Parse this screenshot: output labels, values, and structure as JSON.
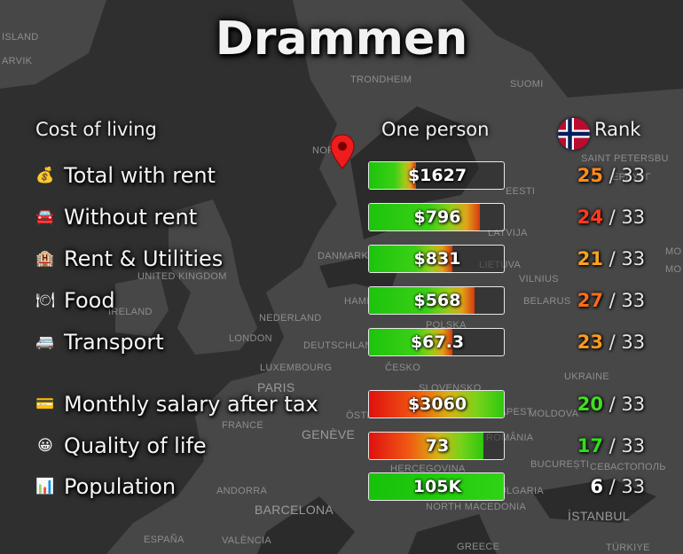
{
  "title": "Drammen",
  "headers": {
    "category": "Cost of living",
    "value": "One person",
    "rank": "Rank"
  },
  "map_labels": [
    {
      "text": "ISLAND",
      "big": false
    },
    {
      "text": "ARVIK",
      "big": false
    },
    {
      "text": "TRONDHEIM",
      "big": false
    },
    {
      "text": "SUOMI",
      "big": false
    },
    {
      "text": "NOR",
      "big": false
    },
    {
      "text": "SAINT PETERSBU",
      "big": false
    },
    {
      "text": "ЕРБУРГ",
      "big": false
    },
    {
      "text": "EESTI",
      "big": false
    },
    {
      "text": "LATVIJA",
      "big": false
    },
    {
      "text": "DANMARK",
      "big": false
    },
    {
      "text": "LIETUVA",
      "big": false
    },
    {
      "text": "UNITED KINGDOM",
      "big": false
    },
    {
      "text": "VILNIUS",
      "big": false
    },
    {
      "text": "MO",
      "big": false
    },
    {
      "text": "MO",
      "big": false
    },
    {
      "text": "HAMBURG",
      "big": false
    },
    {
      "text": "BELARUS",
      "big": false
    },
    {
      "text": "IRELAND",
      "big": false
    },
    {
      "text": "NEDERLAND",
      "big": false
    },
    {
      "text": "POLSKA",
      "big": false
    },
    {
      "text": "LONDON",
      "big": false
    },
    {
      "text": "DEUTSCHLAND",
      "big": false
    },
    {
      "text": "LUXEMBOURG",
      "big": false
    },
    {
      "text": "ČESKO",
      "big": false
    },
    {
      "text": "UKRAINE",
      "big": false
    },
    {
      "text": "PARIS",
      "big": true
    },
    {
      "text": "SLOVENSKO",
      "big": false
    },
    {
      "text": "ÖSTE",
      "big": false
    },
    {
      "text": "DAPEST",
      "big": false
    },
    {
      "text": "MOLDOVA",
      "big": false
    },
    {
      "text": "FRANCE",
      "big": false
    },
    {
      "text": "GENÈVE",
      "big": true
    },
    {
      "text": "ROMÂNIA",
      "big": false
    },
    {
      "text": "BUCUREȘTI",
      "big": false
    },
    {
      "text": "СЕВАСТОПОЛЬ",
      "big": false
    },
    {
      "text": "HERCEGOVINA",
      "big": false
    },
    {
      "text": "ANDORRA",
      "big": false
    },
    {
      "text": "ITAL",
      "big": false
    },
    {
      "text": "BULGARIA",
      "big": false
    },
    {
      "text": "NORTH MACEDONIA",
      "big": false
    },
    {
      "text": "BARCELONA",
      "big": true
    },
    {
      "text": "İSTANBUL",
      "big": true
    },
    {
      "text": "ESPAÑA",
      "big": false
    },
    {
      "text": "VALÈNCIA",
      "big": false
    },
    {
      "text": "GREECE",
      "big": false
    },
    {
      "text": "TÜRKIYE",
      "big": false
    }
  ],
  "total_rank": "33",
  "chart_data": {
    "type": "bar",
    "title": "Drammen",
    "series_name": "One person",
    "categories": [
      "Total with rent",
      "Without rent",
      "Rent & Utilities",
      "Food",
      "Transport",
      "Monthly salary after tax",
      "Quality of life",
      "Population"
    ],
    "values": [
      "$1627",
      "$796",
      "$831",
      "$568",
      "$67.3",
      "$3060",
      "73",
      "105K"
    ],
    "bar_fill_fraction": [
      0.35,
      0.82,
      0.62,
      0.78,
      0.62,
      1.0,
      0.85,
      1.0
    ],
    "bar_gradient": [
      "cost",
      "cost",
      "cost",
      "cost",
      "cost",
      "quality",
      "quality",
      "green"
    ],
    "ranks": [
      "25",
      "24",
      "21",
      "27",
      "23",
      "20",
      "17",
      "6"
    ],
    "rank_colors": [
      "#ff8c1a",
      "#ff3b1f",
      "#ffa21c",
      "#ff6b1a",
      "#ff9a1e",
      "#3fe01e",
      "#2fe01a",
      "#ffffff"
    ],
    "icons": [
      "money-bag-icon",
      "car-icon",
      "building-icon",
      "plate-icon",
      "bus-icon",
      "credit-card-icon",
      "smiley-icon",
      "bar-chart-icon"
    ],
    "rank_of": "33"
  }
}
